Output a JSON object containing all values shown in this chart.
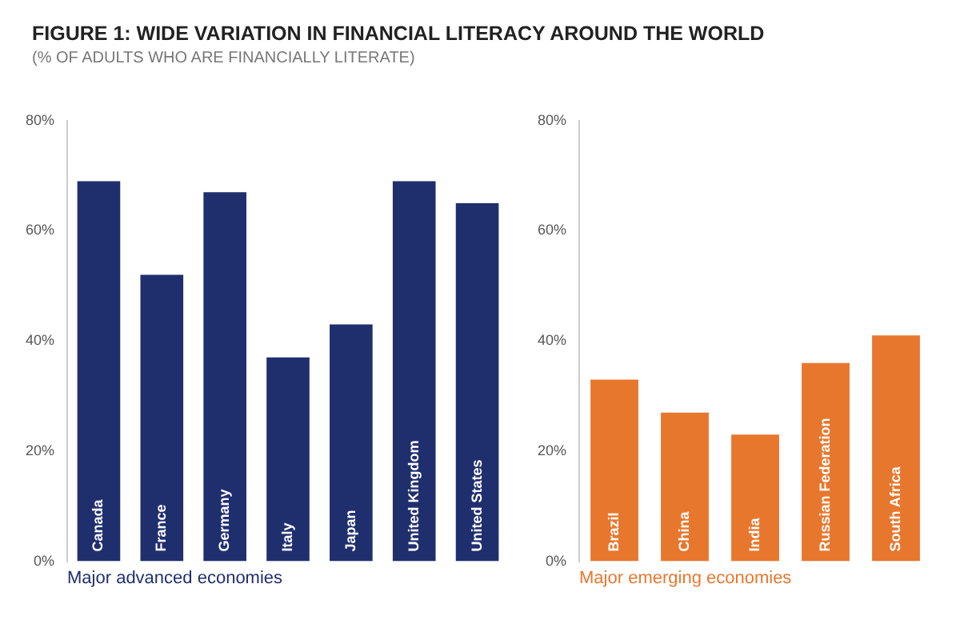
{
  "chart_data": [
    {
      "type": "bar",
      "title": "FIGURE 1: WIDE VARIATION IN FINANCIAL LITERACY AROUND THE WORLD",
      "subtitle": "(% OF ADULTS WHO ARE FINANCIALLY LITERATE)",
      "xlabel": "Major advanced economies",
      "categories": [
        "Canada",
        "France",
        "Germany",
        "Italy",
        "Japan",
        "United Kingdom",
        "United States"
      ],
      "series": [
        {
          "color": "#1f2f6e",
          "values": [
            69,
            52,
            67,
            37,
            43,
            69,
            65
          ]
        }
      ],
      "ylim": [
        0,
        80
      ],
      "yticks": [
        {
          "value": 0,
          "label": "0%"
        },
        {
          "value": 20,
          "label": "20%"
        },
        {
          "value": 40,
          "label": "40%"
        },
        {
          "value": 60,
          "label": "60%"
        },
        {
          "value": 80,
          "label": "80%"
        }
      ],
      "grid": false,
      "legend": false
    },
    {
      "type": "bar",
      "xlabel": "Major emerging economies",
      "categories": [
        "Brazil",
        "China",
        "India",
        "Russian Federation",
        "South Africa"
      ],
      "series": [
        {
          "color": "#e8772e",
          "values": [
            33,
            27,
            23,
            36,
            41
          ]
        }
      ],
      "ylim": [
        0,
        80
      ],
      "yticks": [
        {
          "value": 0,
          "label": "0%"
        },
        {
          "value": 20,
          "label": "20%"
        },
        {
          "value": 40,
          "label": "40%"
        },
        {
          "value": 60,
          "label": "60%"
        },
        {
          "value": 80,
          "label": "80%"
        }
      ],
      "grid": false,
      "legend": false
    }
  ]
}
